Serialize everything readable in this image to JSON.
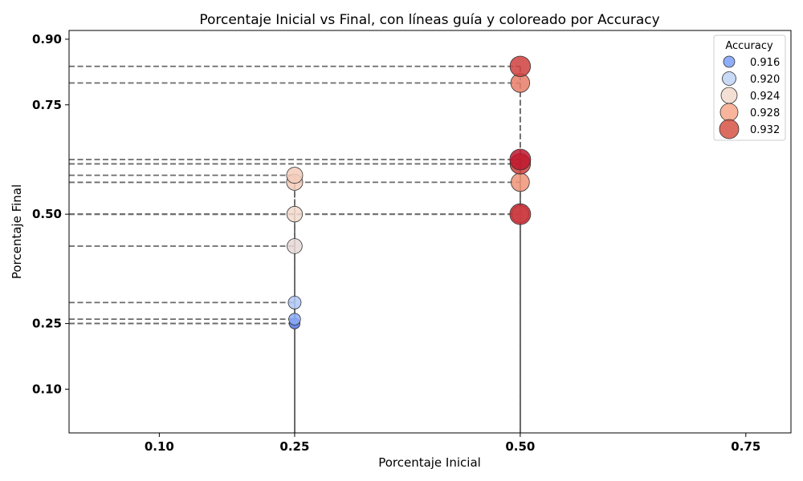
{
  "chart_data": {
    "type": "scatter",
    "title": "Porcentaje Inicial vs Final, con líneas guía y coloreado por Accuracy",
    "xlabel": "Porcentaje Inicial",
    "ylabel": "Porcentaje Final",
    "xlim": [
      0.0,
      0.8
    ],
    "ylim": [
      0.0,
      0.92
    ],
    "xticks": [
      "0.10",
      "0.25",
      "0.50",
      "0.75"
    ],
    "yticks": [
      "0.10",
      "0.25",
      "0.50",
      "0.75",
      "0.90"
    ],
    "grid": false,
    "guide_lines": true,
    "colormap": "coolwarm",
    "legend": {
      "title": "Accuracy",
      "position": "top-right",
      "entries": [
        {
          "label": "0.916",
          "color": "#7b9ff9"
        },
        {
          "label": "0.920",
          "color": "#c0d4f5"
        },
        {
          "label": "0.924",
          "color": "#f2d9cc"
        },
        {
          "label": "0.928",
          "color": "#f7a889"
        },
        {
          "label": "0.932",
          "color": "#d65244"
        }
      ]
    },
    "points": [
      {
        "x": 0.25,
        "y": 0.25,
        "accuracy": 0.914
      },
      {
        "x": 0.25,
        "y": 0.25,
        "accuracy": 0.915
      },
      {
        "x": 0.25,
        "y": 0.26,
        "accuracy": 0.917
      },
      {
        "x": 0.25,
        "y": 0.298,
        "accuracy": 0.919
      },
      {
        "x": 0.25,
        "y": 0.427,
        "accuracy": 0.923
      },
      {
        "x": 0.25,
        "y": 0.5,
        "accuracy": 0.924
      },
      {
        "x": 0.25,
        "y": 0.573,
        "accuracy": 0.925
      },
      {
        "x": 0.25,
        "y": 0.589,
        "accuracy": 0.925
      },
      {
        "x": 0.5,
        "y": 0.5,
        "accuracy": 0.934
      },
      {
        "x": 0.5,
        "y": 0.5,
        "accuracy": 0.927
      },
      {
        "x": 0.5,
        "y": 0.573,
        "accuracy": 0.929
      },
      {
        "x": 0.5,
        "y": 0.615,
        "accuracy": 0.933
      },
      {
        "x": 0.5,
        "y": 0.625,
        "accuracy": 0.935
      },
      {
        "x": 0.5,
        "y": 0.8,
        "accuracy": 0.93
      },
      {
        "x": 0.5,
        "y": 0.838,
        "accuracy": 0.933
      }
    ]
  }
}
